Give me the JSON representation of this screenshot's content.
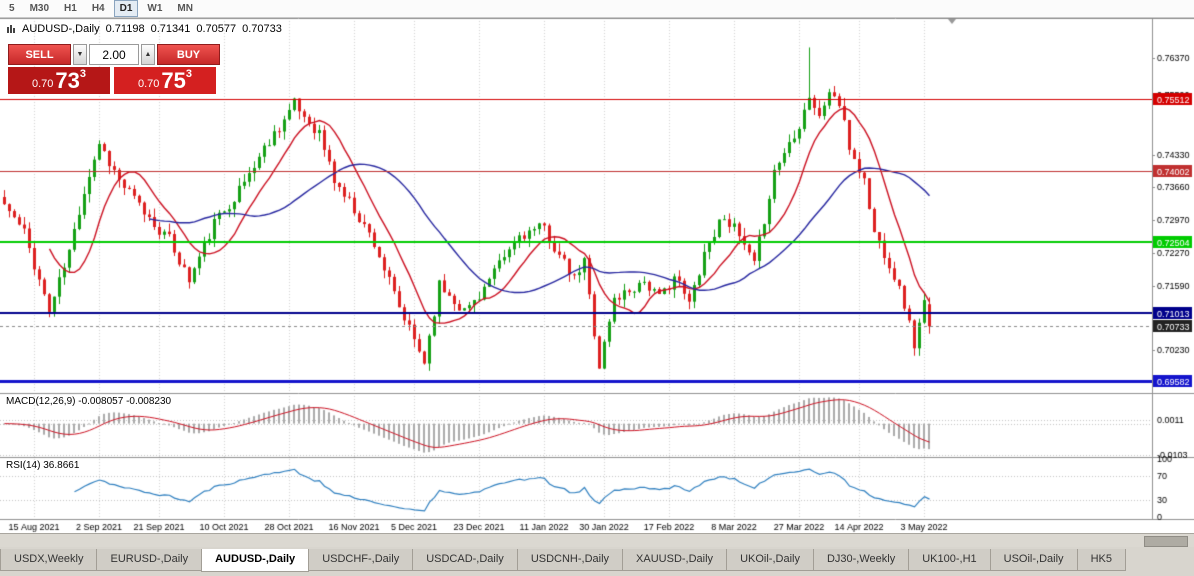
{
  "toolbar": {
    "periods": [
      {
        "label": "5",
        "active": false
      },
      {
        "label": "M30",
        "active": false
      },
      {
        "label": "H1",
        "active": false
      },
      {
        "label": "H4",
        "active": false
      },
      {
        "label": "D1",
        "active": true
      },
      {
        "label": "W1",
        "active": false
      },
      {
        "label": "MN",
        "active": false
      }
    ]
  },
  "icons": {
    "dropdown": "▼",
    "spin_up": "▲"
  },
  "chart": {
    "symbol_title": "AUDUSD-,Daily",
    "ohlc": {
      "open": "0.71198",
      "high": "0.71341",
      "low": "0.70577",
      "close": "0.70733"
    },
    "trade": {
      "sell_label": "SELL",
      "buy_label": "BUY",
      "volume": "2.00",
      "sell_price_main": "0.70",
      "sell_price_pips": "73",
      "sell_price_sup": "3",
      "buy_price_main": "0.70",
      "buy_price_pips": "75",
      "buy_price_sup": "3"
    },
    "colors": {
      "bull": "#15a015",
      "bear": "#dd2020",
      "grid": "#d4d4d4",
      "axis_line": "#909090"
    },
    "y_axis": {
      "price_top": 0.7722,
      "price_bottom": 0.6933,
      "ticks": [
        "0.76370",
        "0.75590",
        "0.74330",
        "0.73660",
        "0.72970",
        "0.72270",
        "0.71590",
        "0.70230"
      ]
    },
    "hlines": [
      {
        "price": 0.75512,
        "label": "0.75512",
        "color": "#d40000",
        "width": 1
      },
      {
        "price": 0.74002,
        "label": "0.74002",
        "color": "#c03030",
        "width": 1
      },
      {
        "price": 0.72504,
        "label": "0.72504",
        "color": "#00cc00",
        "width": 2
      },
      {
        "price": 0.71013,
        "label": "0.71013",
        "color": "#00008b",
        "width": 2
      },
      {
        "price": 0.69582,
        "label": "0.69582",
        "color": "#1414cc",
        "width": 3
      }
    ],
    "bid": {
      "price": 0.70733,
      "label": "0.70733",
      "badge_color": "#222222"
    },
    "dates": [
      "15 Aug 2021",
      "2 Sep 2021",
      "21 Sep 2021",
      "10 Oct 2021",
      "28 Oct 2021",
      "16 Nov 2021",
      "5 Dec 2021",
      "23 Dec 2021",
      "11 Jan 2022",
      "30 Jan 2022",
      "17 Feb 2022",
      "8 Mar 2022",
      "27 Mar 2022",
      "14 Apr 2022",
      "3 May 2022"
    ],
    "series": {
      "n": 186,
      "seed": 11,
      "noise": 0.0013,
      "wick": 0.0018,
      "waypoints": [
        [
          0,
          0.733
        ],
        [
          4,
          0.727
        ],
        [
          9,
          0.7105
        ],
        [
          13,
          0.723
        ],
        [
          16,
          0.736
        ],
        [
          19,
          0.746
        ],
        [
          23,
          0.738
        ],
        [
          29,
          0.73
        ],
        [
          33,
          0.7255
        ],
        [
          37,
          0.717
        ],
        [
          42,
          0.729
        ],
        [
          47,
          0.736
        ],
        [
          53,
          0.7465
        ],
        [
          58,
          0.754
        ],
        [
          60,
          0.7515
        ],
        [
          63,
          0.748
        ],
        [
          66,
          0.738
        ],
        [
          70,
          0.732
        ],
        [
          74,
          0.725
        ],
        [
          79,
          0.711
        ],
        [
          84,
          0.7
        ],
        [
          87,
          0.716
        ],
        [
          90,
          0.713
        ],
        [
          92,
          0.7105
        ],
        [
          95,
          0.714
        ],
        [
          99,
          0.72
        ],
        [
          103,
          0.7265
        ],
        [
          108,
          0.728
        ],
        [
          111,
          0.722
        ],
        [
          114,
          0.717
        ],
        [
          116,
          0.721
        ],
        [
          119,
          0.699
        ],
        [
          122,
          0.713
        ],
        [
          125,
          0.715
        ],
        [
          128,
          0.717
        ],
        [
          131,
          0.713
        ],
        [
          134,
          0.718
        ],
        [
          137,
          0.712
        ],
        [
          140,
          0.723
        ],
        [
          144,
          0.731
        ],
        [
          147,
          0.726
        ],
        [
          150,
          0.72
        ],
        [
          154,
          0.74
        ],
        [
          159,
          0.75
        ],
        [
          161,
          0.756
        ],
        [
          163,
          0.751
        ],
        [
          165,
          0.757
        ],
        [
          167,
          0.754
        ],
        [
          169,
          0.745
        ],
        [
          172,
          0.738
        ],
        [
          174,
          0.727
        ],
        [
          176,
          0.723
        ],
        [
          178,
          0.718
        ],
        [
          180,
          0.712
        ],
        [
          182,
          0.7035
        ],
        [
          184,
          0.712
        ],
        [
          185,
          0.70733
        ]
      ],
      "spike": {
        "index": 161,
        "high": 0.766
      },
      "last_candle": {
        "o": 0.71198,
        "h": 0.71341,
        "l": 0.70577,
        "c": 0.70733
      }
    },
    "ma": [
      {
        "period": 10,
        "color": "#cc1122"
      },
      {
        "period": 30,
        "color": "#2727a0"
      }
    ]
  },
  "macd": {
    "label": "MACD(12,26,9) -0.008057 -0.008230",
    "fast": 12,
    "slow": 26,
    "signal": 9,
    "hist_color": "#ababab",
    "signal_color": "#cc1122",
    "axis_top": "0.0011",
    "axis_bottom": "-0.0103"
  },
  "rsi": {
    "label": "RSI(14) 36.8661",
    "period": 14,
    "color": "#3080c0",
    "levels": [
      70,
      30
    ],
    "axis_labels": [
      "100",
      "70",
      "30",
      "0"
    ]
  },
  "tabs": {
    "active_index": 2,
    "items": [
      "USDX,Weekly",
      "EURUSD-,Daily",
      "AUDUSD-,Daily",
      "USDCHF-,Daily",
      "USDCAD-,Daily",
      "USDCNH-,Daily",
      "XAUUSD-,Daily",
      "UKOil-,Daily",
      "DJ30-,Weekly",
      "UK100-,H1",
      "USOil-,Daily",
      "HK5"
    ]
  }
}
